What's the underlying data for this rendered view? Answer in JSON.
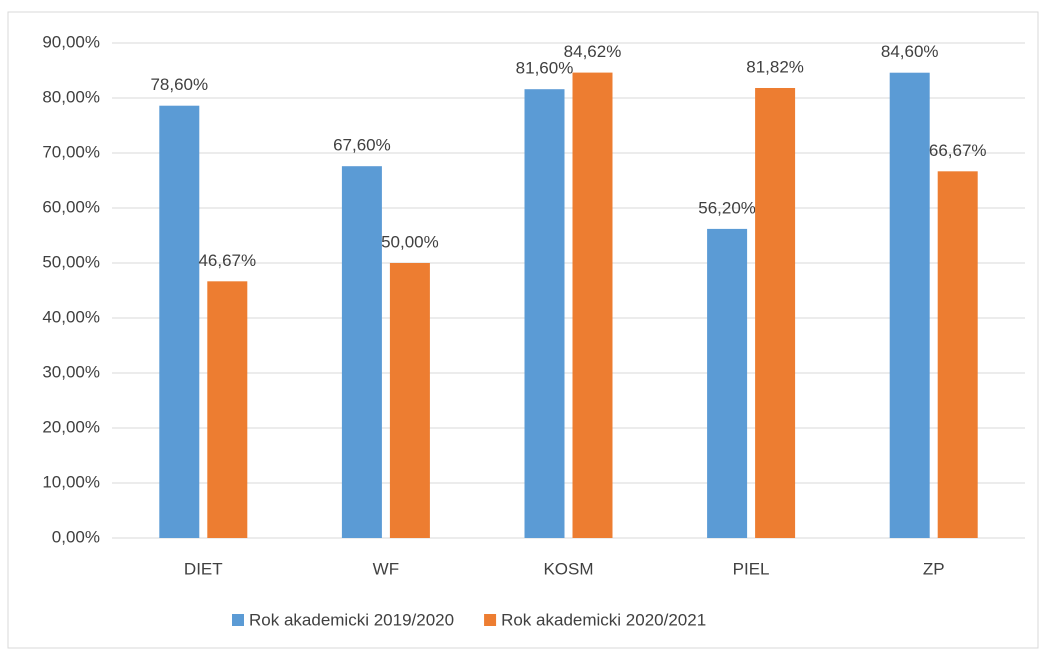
{
  "chart_data": {
    "type": "bar",
    "categories": [
      "DIET",
      "WF",
      "KOSM",
      "PIEL",
      "ZP"
    ],
    "series": [
      {
        "name": "Rok akademicki 2019/2020",
        "color": "#5b9bd5",
        "values": [
          78.6,
          67.6,
          81.6,
          56.2,
          84.6
        ],
        "value_labels": [
          "78,60%",
          "67,60%",
          "81,60%",
          "56,20%",
          "84,60%"
        ]
      },
      {
        "name": "Rok akademicki 2020/2021",
        "color": "#ed7d31",
        "values": [
          46.67,
          50,
          84.62,
          81.82,
          66.67
        ],
        "value_labels": [
          "46,67%",
          "50,00%",
          "84,62%",
          "81,82%",
          "66,67%"
        ]
      }
    ],
    "ylim": [
      0,
      90
    ],
    "yticks": [
      {
        "value": 0,
        "label": "0,00%"
      },
      {
        "value": 10,
        "label": "10,00%"
      },
      {
        "value": 20,
        "label": "20,00%"
      },
      {
        "value": 30,
        "label": "30,00%"
      },
      {
        "value": 40,
        "label": "40,00%"
      },
      {
        "value": 50,
        "label": "50,00%"
      },
      {
        "value": 60,
        "label": "60,00%"
      },
      {
        "value": 70,
        "label": "70,00%"
      },
      {
        "value": 80,
        "label": "80,00%"
      },
      {
        "value": 90,
        "label": "90,00%"
      }
    ],
    "grid": true,
    "legend": "bottom"
  }
}
